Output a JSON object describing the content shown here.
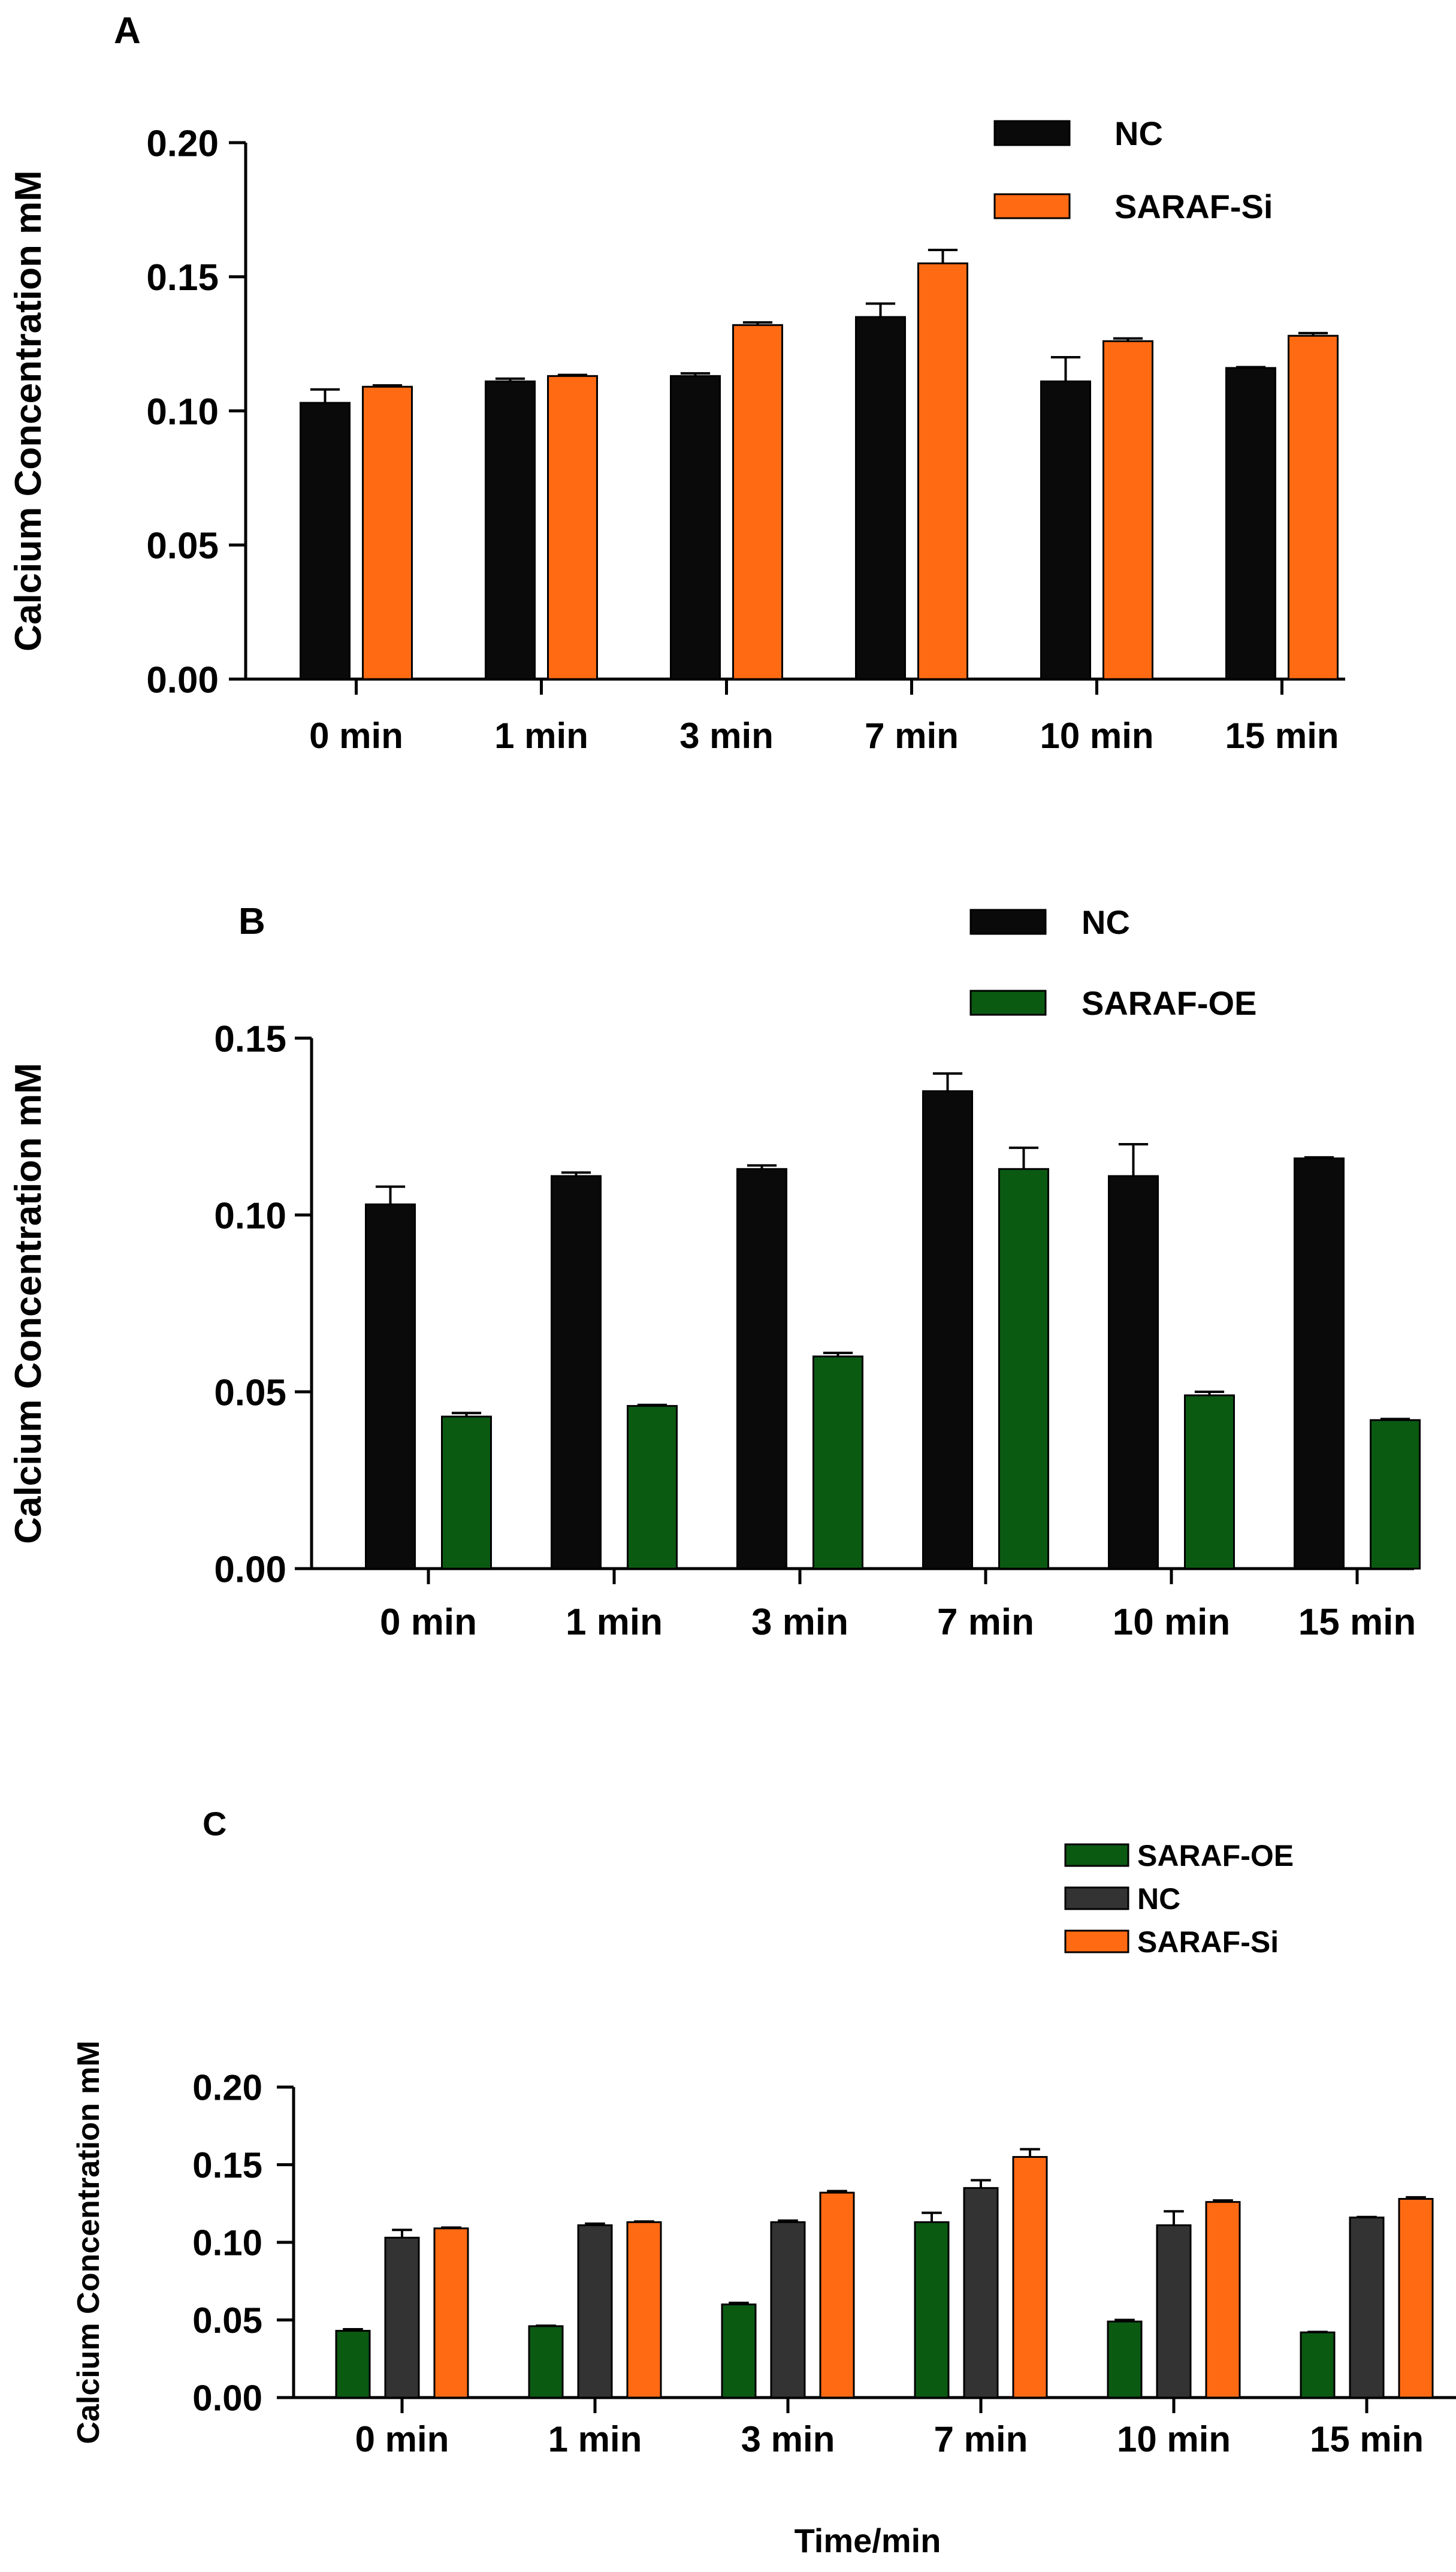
{
  "colors": {
    "nc_a": "#0a0a0a",
    "nc_c": "#333333",
    "saraf_si": "#ff6a13",
    "saraf_oe": "#0b5a12",
    "axis": "#000000"
  },
  "chart_data": [
    {
      "panel_label": "A",
      "type": "bar",
      "ylabel": "Calcium Concentration mM",
      "xlabel": "",
      "categories": [
        "0 min",
        "1 min",
        "3 min",
        "7 min",
        "10 min",
        "15 min"
      ],
      "ylim": [
        0,
        0.2
      ],
      "yticks": [
        "0.00",
        "0.05",
        "0.10",
        "0.15",
        "0.20"
      ],
      "legend_position": "top-right",
      "series": [
        {
          "name": "NC",
          "color_key": "nc_a",
          "values": [
            0.103,
            0.111,
            0.113,
            0.135,
            0.111,
            0.116
          ],
          "errors": [
            0.005,
            0.001,
            0.001,
            0.005,
            0.009,
            0.0003
          ]
        },
        {
          "name": "SARAF-Si",
          "color_key": "saraf_si",
          "values": [
            0.109,
            0.113,
            0.132,
            0.155,
            0.126,
            0.128
          ],
          "errors": [
            0.0005,
            0.0004,
            0.001,
            0.005,
            0.001,
            0.001
          ]
        }
      ]
    },
    {
      "panel_label": "B",
      "type": "bar",
      "ylabel": "Calcium Concentration mM",
      "xlabel": "",
      "categories": [
        "0 min",
        "1 min",
        "3 min",
        "7 min",
        "10 min",
        "15 min"
      ],
      "ylim": [
        0,
        0.15
      ],
      "yticks": [
        "0.00",
        "0.05",
        "0.10",
        "0.15"
      ],
      "legend_position": "top-right",
      "series": [
        {
          "name": "NC",
          "color_key": "nc_a",
          "values": [
            0.103,
            0.111,
            0.113,
            0.135,
            0.111,
            0.116
          ],
          "errors": [
            0.005,
            0.001,
            0.001,
            0.005,
            0.009,
            0.0003
          ]
        },
        {
          "name": "SARAF-OE",
          "color_key": "saraf_oe",
          "values": [
            0.043,
            0.046,
            0.06,
            0.113,
            0.049,
            0.042
          ],
          "errors": [
            0.001,
            0.0003,
            0.001,
            0.006,
            0.001,
            0.0003
          ]
        }
      ]
    },
    {
      "panel_label": "C",
      "type": "bar",
      "ylabel": "Calcium Concentration mM",
      "xlabel": "Time/min",
      "categories": [
        "0 min",
        "1 min",
        "3 min",
        "7 min",
        "10 min",
        "15 min"
      ],
      "ylim": [
        0,
        0.2
      ],
      "yticks": [
        "0.00",
        "0.05",
        "0.10",
        "0.15",
        "0.20"
      ],
      "legend_position": "top-right",
      "series": [
        {
          "name": "SARAF-OE",
          "color_key": "saraf_oe",
          "values": [
            0.043,
            0.046,
            0.06,
            0.113,
            0.049,
            0.042
          ],
          "errors": [
            0.001,
            0.0003,
            0.001,
            0.006,
            0.001,
            0.0003
          ]
        },
        {
          "name": "NC",
          "color_key": "nc_c",
          "values": [
            0.103,
            0.111,
            0.113,
            0.135,
            0.111,
            0.116
          ],
          "errors": [
            0.005,
            0.001,
            0.001,
            0.005,
            0.009,
            0.0003
          ]
        },
        {
          "name": "SARAF-Si",
          "color_key": "saraf_si",
          "values": [
            0.109,
            0.113,
            0.132,
            0.155,
            0.126,
            0.128
          ],
          "errors": [
            0.0005,
            0.0004,
            0.001,
            0.005,
            0.001,
            0.001
          ]
        }
      ]
    }
  ]
}
